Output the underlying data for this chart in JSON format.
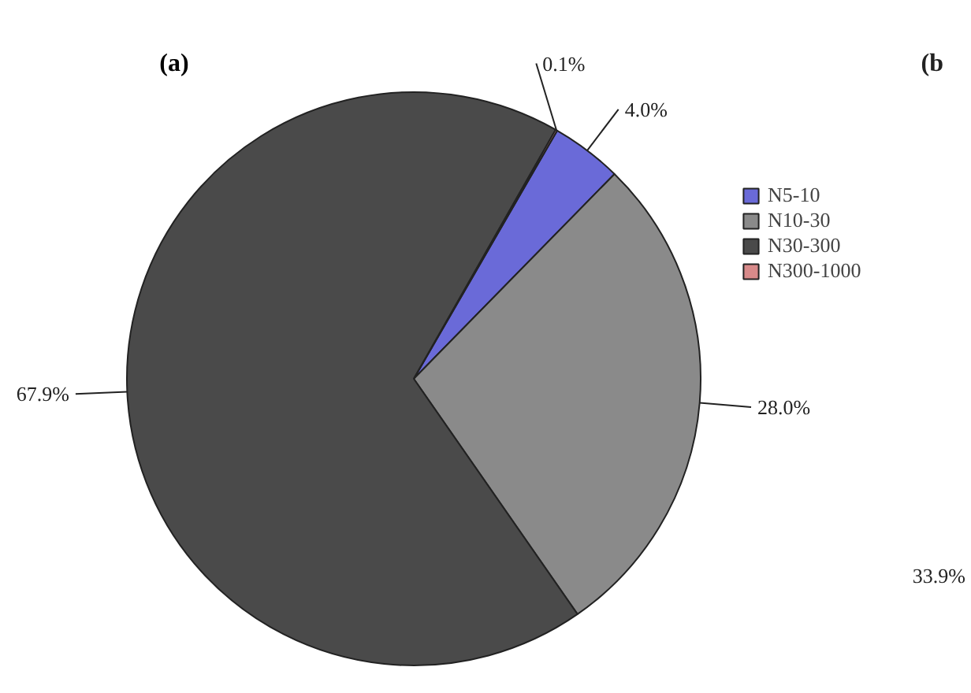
{
  "chart_data": {
    "type": "pie",
    "title": "(a)",
    "categories": [
      "N5-10",
      "N10-30",
      "N30-300",
      "N300-1000"
    ],
    "values": [
      4.0,
      28.0,
      67.9,
      0.1
    ],
    "colors": [
      "#6a6ad8",
      "#8a8a8a",
      "#4a4a4a",
      "#d88a8a"
    ],
    "value_labels": [
      "4.0%",
      "28.0%",
      "67.9%",
      "0.1%"
    ],
    "legend": "top right",
    "annotations": [
      "(b",
      "33.9%"
    ]
  }
}
